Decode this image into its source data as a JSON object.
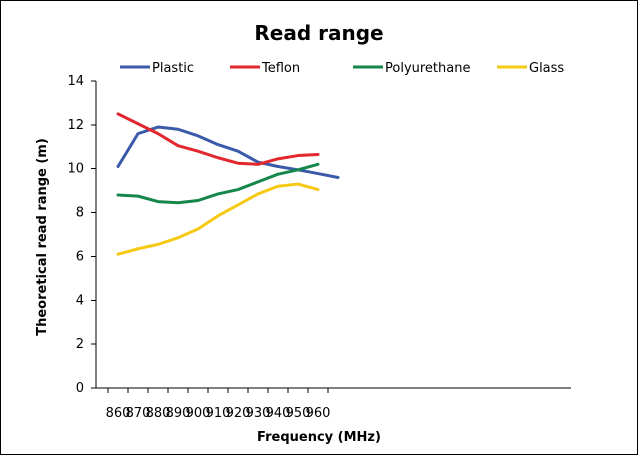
{
  "chart_data": {
    "type": "line",
    "title": "Read range",
    "xlabel": "Frequency (MHz)",
    "ylabel": "Theoretical read range (m)",
    "x_tick_labels": [
      "860",
      "870",
      "880",
      "890",
      "900",
      "910",
      "920",
      "930",
      "940",
      "950",
      "960"
    ],
    "y_ticks": [
      0,
      2,
      4,
      6,
      8,
      10,
      12,
      14
    ],
    "ylim": [
      0,
      14
    ],
    "grid": false,
    "legend_position": "top",
    "series": [
      {
        "name": "Plastic",
        "color": "#3a59a8",
        "x": [
          860,
          870,
          880,
          890,
          900,
          910,
          920,
          930,
          940,
          950,
          960,
          970
        ],
        "y": [
          10.1,
          11.6,
          11.9,
          11.8,
          11.5,
          11.1,
          10.8,
          10.3,
          10.1,
          9.95,
          9.78,
          9.6
        ]
      },
      {
        "name": "Teflon",
        "color": "#e2272e",
        "x": [
          860,
          870,
          880,
          890,
          900,
          910,
          920,
          930,
          940,
          950,
          960
        ],
        "y": [
          12.5,
          12.05,
          11.6,
          11.05,
          10.8,
          10.5,
          10.25,
          10.2,
          10.45,
          10.6,
          10.65
        ]
      },
      {
        "name": "Polyurethane",
        "color": "#16874a",
        "x": [
          860,
          870,
          880,
          890,
          900,
          910,
          920,
          930,
          940,
          950,
          960
        ],
        "y": [
          8.8,
          8.75,
          8.5,
          8.45,
          8.55,
          8.85,
          9.05,
          9.4,
          9.75,
          9.95,
          10.2
        ]
      },
      {
        "name": "Glass",
        "color": "#f6c915",
        "x": [
          860,
          870,
          880,
          890,
          900,
          910,
          920,
          930,
          940,
          950,
          960
        ],
        "y": [
          6.1,
          6.35,
          6.55,
          6.85,
          7.25,
          7.85,
          8.35,
          8.85,
          9.2,
          9.3,
          9.05
        ]
      }
    ]
  }
}
